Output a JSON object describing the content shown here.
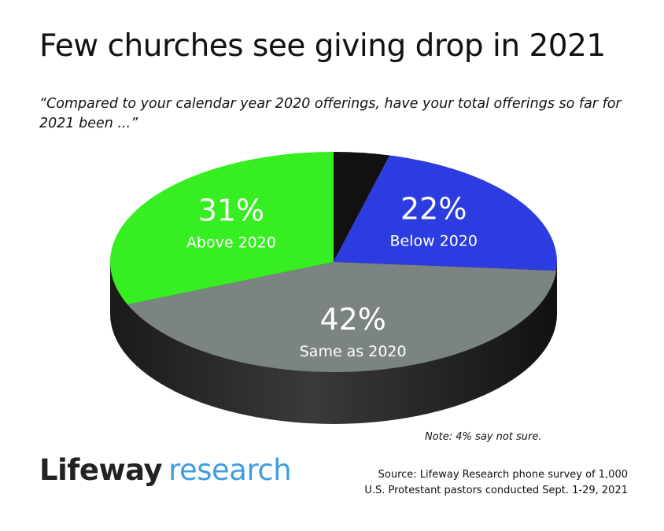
{
  "chart_data": {
    "type": "pie",
    "title": "Few churches see giving drop in 2021",
    "subtitle": "“Compared to your calendar year 2020 offerings, have your total offerings so far for 2021 been ...”",
    "slices": [
      {
        "label": "",
        "value": 4,
        "pct_label": "",
        "color": "#111111"
      },
      {
        "label": "Below 2020",
        "value": 22,
        "pct_label": "22%",
        "color": "#2c3ce0"
      },
      {
        "label": "Same as 2020",
        "value": 42,
        "pct_label": "42%",
        "color": "#7b8383"
      },
      {
        "label": "Above 2020",
        "value": 31,
        "pct_label": "31%",
        "color": "#36ee22"
      }
    ],
    "note": "Note: 4% say not sure.",
    "style": "3d"
  },
  "logo": {
    "part1": "Lifeway",
    "part2": "research"
  },
  "source": {
    "line1": "Source: Lifeway Research phone survey of 1,000",
    "line2": "U.S. Protestant pastors conducted Sept. 1-29, 2021"
  }
}
